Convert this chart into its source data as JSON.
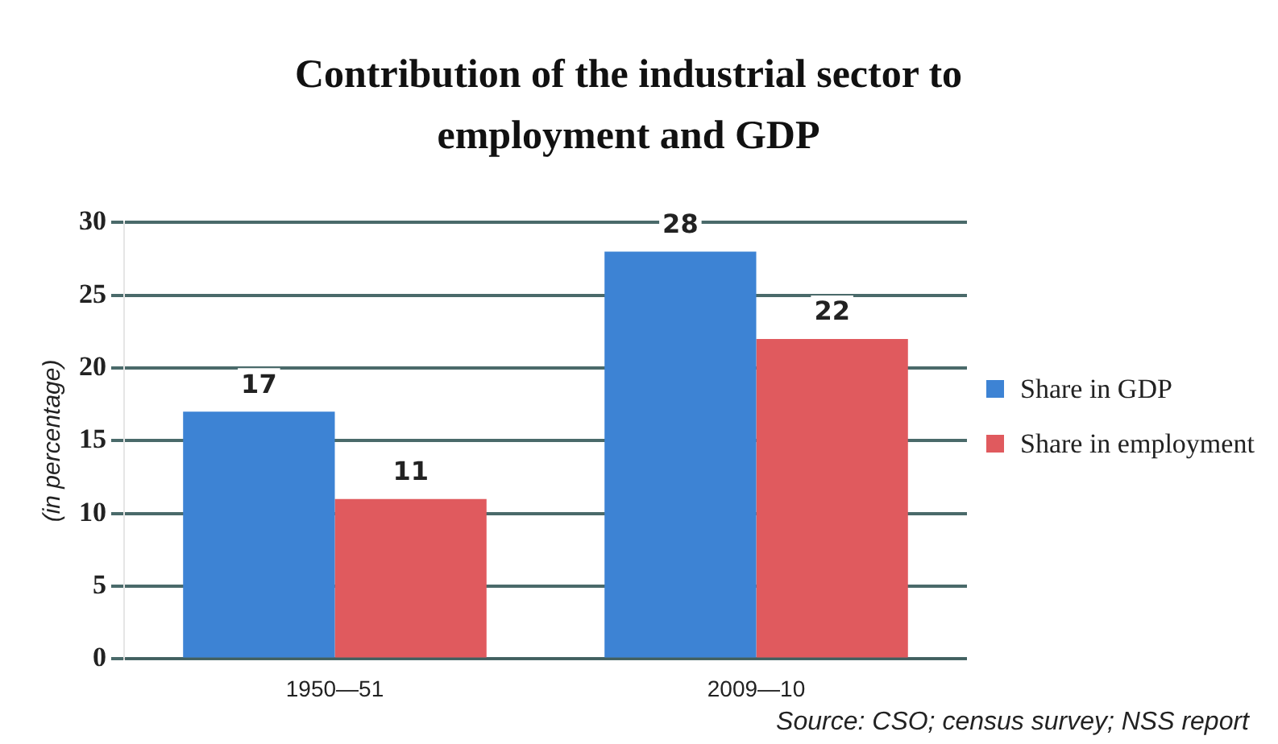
{
  "chart_data": {
    "type": "bar",
    "title": "Contribution of the industrial sector to employment and GDP",
    "ylabel": "(in percentage)",
    "categories": [
      "1950—51",
      "2009—10"
    ],
    "series": [
      {
        "name": "Share in GDP",
        "color": "#3d83d4",
        "values": [
          17,
          28
        ]
      },
      {
        "name": "Share in employment",
        "color": "#e05a5e",
        "values": [
          11,
          22
        ]
      }
    ],
    "ylim": [
      0,
      30
    ],
    "yticks": [
      0,
      5,
      10,
      15,
      20,
      25,
      30
    ],
    "grid": "y",
    "legend": "right",
    "data_labels": true,
    "annotations": [
      "Source: CSO; census survey; NSS report"
    ]
  }
}
